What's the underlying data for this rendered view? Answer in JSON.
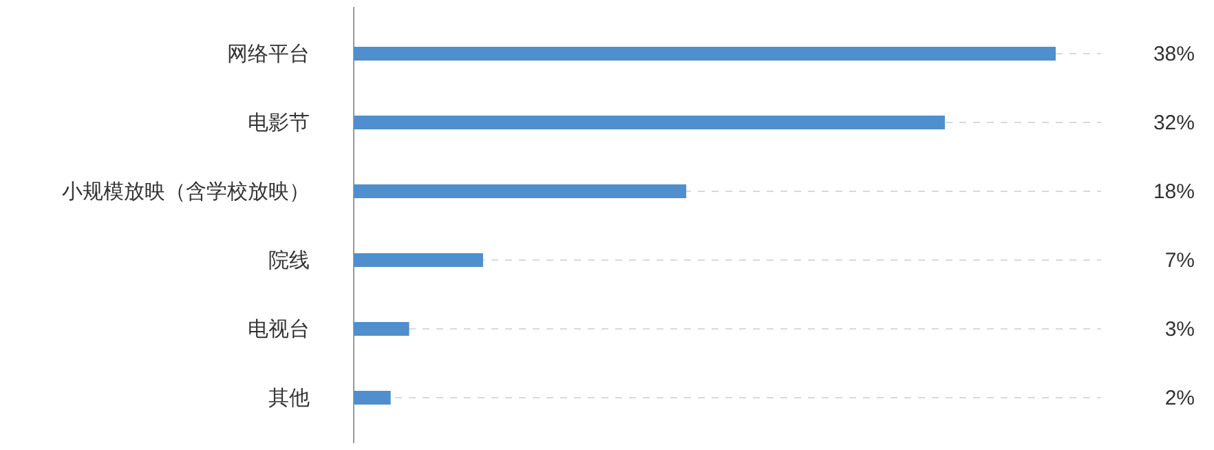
{
  "chart_data": {
    "type": "bar",
    "orientation": "horizontal",
    "categories": [
      "网络平台",
      "电影节",
      "小规模放映（含学校放映）",
      "院线",
      "电视台",
      "其他"
    ],
    "values": [
      38,
      32,
      18,
      7,
      3,
      2
    ],
    "value_labels": [
      "38%",
      "32%",
      "18%",
      "7%",
      "3%",
      "2%"
    ],
    "color": "#4f8fcd",
    "grid": "y"
  }
}
